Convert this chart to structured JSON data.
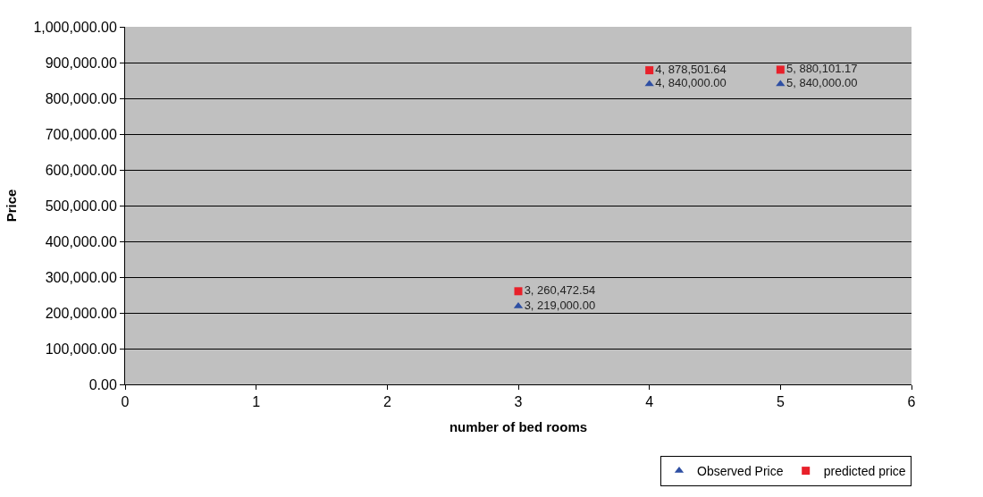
{
  "chart_data": {
    "type": "scatter",
    "xlabel": "number of bed rooms",
    "ylabel": "Price",
    "x": [
      3,
      4,
      5
    ],
    "series": [
      {
        "name": "Observed Price",
        "color": "#2e4fa3",
        "marker": "triangle",
        "values": [
          219000,
          840000,
          840000
        ],
        "value_labels": [
          "3, 219,000.00",
          "4, 840,000.00",
          "5, 840,000.00"
        ]
      },
      {
        "name": "predicted price",
        "color": "#e8202a",
        "marker": "square",
        "values": [
          260472.54,
          878501.64,
          880101.17
        ],
        "value_labels": [
          "3, 260,472.54",
          "4, 878,501.64",
          "5, 880,101.17"
        ]
      }
    ],
    "xlim": [
      0,
      6
    ],
    "xticks": [
      0,
      1,
      2,
      3,
      4,
      5,
      6
    ],
    "ylim": [
      0,
      1000000
    ],
    "yticks": [
      {
        "value": 0,
        "label": "0.00"
      },
      {
        "value": 100000,
        "label": "100,000.00"
      },
      {
        "value": 200000,
        "label": "200,000.00"
      },
      {
        "value": 300000,
        "label": "300,000.00"
      },
      {
        "value": 400000,
        "label": "400,000.00"
      },
      {
        "value": 500000,
        "label": "500,000.00"
      },
      {
        "value": 600000,
        "label": "600,000.00"
      },
      {
        "value": 700000,
        "label": "700,000.00"
      },
      {
        "value": 800000,
        "label": "800,000.00"
      },
      {
        "value": 900000,
        "label": "900,000.00"
      },
      {
        "value": 1000000,
        "label": "1,000,000.00"
      }
    ],
    "grid": "y",
    "legend": "bottom right"
  }
}
